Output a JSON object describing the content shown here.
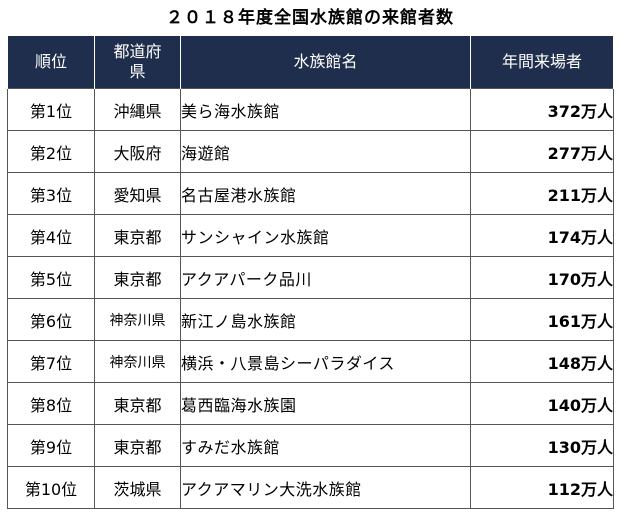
{
  "title": "２０１８年度全国水族館の来館者数",
  "headers": {
    "rank": "順位",
    "prefecture": "都道府県",
    "name": "水族館名",
    "visitors": "年間来場者"
  },
  "rows": [
    {
      "rank": "第1位",
      "prefecture": "沖縄県",
      "name": "美ら海水族館",
      "visitors": "372万人"
    },
    {
      "rank": "第2位",
      "prefecture": "大阪府",
      "name": "海遊館",
      "visitors": "277万人"
    },
    {
      "rank": "第3位",
      "prefecture": "愛知県",
      "name": "名古屋港水族館",
      "visitors": "211万人"
    },
    {
      "rank": "第4位",
      "prefecture": "東京都",
      "name": "サンシャイン水族館",
      "visitors": "174万人"
    },
    {
      "rank": "第5位",
      "prefecture": "東京都",
      "name": "アクアパーク品川",
      "visitors": "170万人"
    },
    {
      "rank": "第6位",
      "prefecture": "神奈川県",
      "name": "新江ノ島水族館",
      "visitors": "161万人"
    },
    {
      "rank": "第7位",
      "prefecture": "神奈川県",
      "name": "横浜・八景島シーパラダイス",
      "visitors": "148万人"
    },
    {
      "rank": "第8位",
      "prefecture": "東京都",
      "name": "葛西臨海水族園",
      "visitors": "140万人"
    },
    {
      "rank": "第9位",
      "prefecture": "東京都",
      "name": "すみだ水族館",
      "visitors": "130万人"
    },
    {
      "rank": "第10位",
      "prefecture": "茨城県",
      "name": "アクアマリン大洗水族館",
      "visitors": "112万人"
    }
  ],
  "colors": {
    "header_bg": "#1f2e4d",
    "header_text": "#ffffff",
    "border": "#555555"
  }
}
